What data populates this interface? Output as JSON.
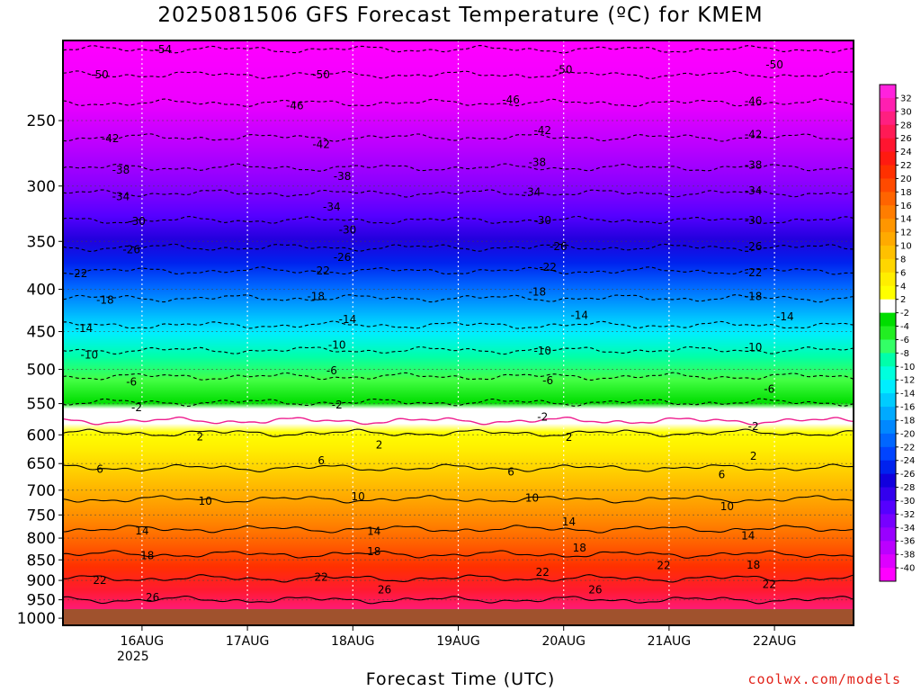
{
  "title": "2025081506 GFS Forecast Temperature (ºC) for KMEM",
  "xlabel": "Forecast Time (UTC)",
  "credit": "coolwx.com/models",
  "year_label": "2025",
  "chart_data": {
    "type": "heatmap",
    "title": "2025081506 GFS Forecast Temperature (ºC) for KMEM",
    "xlabel": "Forecast Time (UTC)",
    "ylabel": "",
    "x_ticks": [
      "16AUG",
      "17AUG",
      "18AUG",
      "19AUG",
      "20AUG",
      "21AUG",
      "22AUG"
    ],
    "x_range_days": [
      15.25,
      22.75
    ],
    "y_ticks": [
      250,
      300,
      350,
      400,
      450,
      500,
      550,
      600,
      650,
      700,
      750,
      800,
      850,
      900,
      950,
      1000
    ],
    "y_range_hpa": [
      200,
      1020
    ],
    "y_scale": "log-pressure",
    "colorbar_labels": [
      32,
      30,
      28,
      26,
      24,
      22,
      20,
      18,
      16,
      14,
      12,
      10,
      8,
      6,
      4,
      2,
      -2,
      -4,
      -6,
      -8,
      -10,
      -12,
      -14,
      -16,
      -18,
      -20,
      -22,
      -24,
      -26,
      -28,
      -30,
      -32,
      -34,
      -36,
      -38,
      -40
    ],
    "colorbar_colors": [
      "#ff22dd",
      "#ff1fb0",
      "#ff1f80",
      "#ff1a55",
      "#ff1530",
      "#ff1a10",
      "#ff3000",
      "#ff4a00",
      "#ff6400",
      "#ff7d00",
      "#ff9600",
      "#ffaa00",
      "#ffc000",
      "#ffd600",
      "#ffee00",
      "#ffff00",
      "#ffffff",
      "#00dd00",
      "#22ee22",
      "#33ff66",
      "#00ffaa",
      "#00ffdd",
      "#00eeff",
      "#00ccff",
      "#00aaff",
      "#0088ff",
      "#0066ff",
      "#0044ff",
      "#0022ee",
      "#1100dd",
      "#3300ee",
      "#5500ff",
      "#7700ff",
      "#9900ff",
      "#bb00ff",
      "#dd00ff",
      "#ff00ff"
    ],
    "isotherm_levels_hpa": [
      {
        "temp": -54,
        "p": 205
      },
      {
        "temp": -50,
        "p": 220
      },
      {
        "temp": -46,
        "p": 238
      },
      {
        "temp": -42,
        "p": 262
      },
      {
        "temp": -38,
        "p": 285
      },
      {
        "temp": -34,
        "p": 306
      },
      {
        "temp": -30,
        "p": 330
      },
      {
        "temp": -26,
        "p": 356
      },
      {
        "temp": -22,
        "p": 380
      },
      {
        "temp": -18,
        "p": 410
      },
      {
        "temp": -14,
        "p": 442
      },
      {
        "temp": -10,
        "p": 474
      },
      {
        "temp": -6,
        "p": 510
      },
      {
        "temp": -2,
        "p": 548
      },
      {
        "temp": 2,
        "p": 597
      },
      {
        "temp": 6,
        "p": 658
      },
      {
        "temp": 10,
        "p": 718
      },
      {
        "temp": 14,
        "p": 780
      },
      {
        "temp": 18,
        "p": 837
      },
      {
        "temp": 22,
        "p": 895
      },
      {
        "temp": 26,
        "p": 950
      }
    ],
    "contour_labels": [
      {
        "text": "-54",
        "day": 16.2,
        "p": 205
      },
      {
        "text": "-50",
        "day": 15.6,
        "p": 220
      },
      {
        "text": "-50",
        "day": 17.7,
        "p": 220
      },
      {
        "text": "-50",
        "day": 20.0,
        "p": 217
      },
      {
        "text": "-50",
        "day": 22.0,
        "p": 214
      },
      {
        "text": "-46",
        "day": 17.45,
        "p": 240
      },
      {
        "text": "-46",
        "day": 19.5,
        "p": 236
      },
      {
        "text": "-46",
        "day": 21.8,
        "p": 237
      },
      {
        "text": "-42",
        "day": 15.7,
        "p": 263
      },
      {
        "text": "-42",
        "day": 17.7,
        "p": 267
      },
      {
        "text": "-42",
        "day": 19.8,
        "p": 257
      },
      {
        "text": "-42",
        "day": 21.8,
        "p": 260
      },
      {
        "text": "-38",
        "day": 15.8,
        "p": 287
      },
      {
        "text": "-38",
        "day": 17.9,
        "p": 292
      },
      {
        "text": "-38",
        "day": 19.75,
        "p": 281
      },
      {
        "text": "-38",
        "day": 21.8,
        "p": 283
      },
      {
        "text": "-34",
        "day": 15.8,
        "p": 309
      },
      {
        "text": "-34",
        "day": 17.8,
        "p": 318
      },
      {
        "text": "-34",
        "day": 19.7,
        "p": 305
      },
      {
        "text": "-34",
        "day": 21.8,
        "p": 304
      },
      {
        "text": "-30",
        "day": 15.95,
        "p": 331
      },
      {
        "text": "-30",
        "day": 17.95,
        "p": 339
      },
      {
        "text": "-30",
        "day": 19.8,
        "p": 330
      },
      {
        "text": "-30",
        "day": 21.8,
        "p": 330
      },
      {
        "text": "-26",
        "day": 15.9,
        "p": 358
      },
      {
        "text": "-26",
        "day": 17.9,
        "p": 366
      },
      {
        "text": "-26",
        "day": 19.95,
        "p": 355
      },
      {
        "text": "-26",
        "day": 21.8,
        "p": 355
      },
      {
        "text": "-22",
        "day": 15.4,
        "p": 383
      },
      {
        "text": "-22",
        "day": 17.7,
        "p": 380
      },
      {
        "text": "-22",
        "day": 19.85,
        "p": 376
      },
      {
        "text": "-22",
        "day": 21.8,
        "p": 382
      },
      {
        "text": "-18",
        "day": 15.65,
        "p": 412
      },
      {
        "text": "-18",
        "day": 17.65,
        "p": 408
      },
      {
        "text": "-18",
        "day": 19.75,
        "p": 403
      },
      {
        "text": "-18",
        "day": 21.8,
        "p": 408
      },
      {
        "text": "-14",
        "day": 15.45,
        "p": 446
      },
      {
        "text": "-14",
        "day": 17.95,
        "p": 435
      },
      {
        "text": "-14",
        "day": 20.15,
        "p": 430
      },
      {
        "text": "-14",
        "day": 22.1,
        "p": 432
      },
      {
        "text": "-10",
        "day": 15.5,
        "p": 480
      },
      {
        "text": "-10",
        "day": 17.85,
        "p": 467
      },
      {
        "text": "-10",
        "day": 19.8,
        "p": 475
      },
      {
        "text": "-10",
        "day": 21.8,
        "p": 470
      },
      {
        "text": "-6",
        "day": 15.9,
        "p": 518
      },
      {
        "text": "-6",
        "day": 17.8,
        "p": 502
      },
      {
        "text": "-6",
        "day": 19.85,
        "p": 516
      },
      {
        "text": "-6",
        "day": 21.95,
        "p": 528
      },
      {
        "text": "-2",
        "day": 15.95,
        "p": 556
      },
      {
        "text": "-2",
        "day": 17.85,
        "p": 552
      },
      {
        "text": "-2",
        "day": 19.8,
        "p": 571
      },
      {
        "text": "-2",
        "day": 21.8,
        "p": 586
      },
      {
        "text": "2",
        "day": 16.55,
        "p": 603
      },
      {
        "text": "2",
        "day": 18.25,
        "p": 617
      },
      {
        "text": "2",
        "day": 20.05,
        "p": 604
      },
      {
        "text": "2",
        "day": 21.8,
        "p": 637
      },
      {
        "text": "6",
        "day": 15.6,
        "p": 660
      },
      {
        "text": "6",
        "day": 17.7,
        "p": 645
      },
      {
        "text": "6",
        "day": 19.5,
        "p": 665
      },
      {
        "text": "6",
        "day": 21.5,
        "p": 670
      },
      {
        "text": "10",
        "day": 16.6,
        "p": 722
      },
      {
        "text": "10",
        "day": 18.05,
        "p": 713
      },
      {
        "text": "10",
        "day": 19.7,
        "p": 715
      },
      {
        "text": "10",
        "day": 21.55,
        "p": 733
      },
      {
        "text": "14",
        "day": 16.0,
        "p": 784
      },
      {
        "text": "14",
        "day": 18.2,
        "p": 785
      },
      {
        "text": "14",
        "day": 20.05,
        "p": 765
      },
      {
        "text": "14",
        "day": 21.75,
        "p": 795
      },
      {
        "text": "18",
        "day": 16.05,
        "p": 840
      },
      {
        "text": "18",
        "day": 18.2,
        "p": 830
      },
      {
        "text": "18",
        "day": 20.15,
        "p": 822
      },
      {
        "text": "18",
        "day": 21.8,
        "p": 862
      },
      {
        "text": "22",
        "day": 15.6,
        "p": 900
      },
      {
        "text": "22",
        "day": 17.7,
        "p": 892
      },
      {
        "text": "22",
        "day": 19.8,
        "p": 880
      },
      {
        "text": "22",
        "day": 20.95,
        "p": 863
      },
      {
        "text": "22",
        "day": 21.95,
        "p": 910
      },
      {
        "text": "26",
        "day": 16.1,
        "p": 944
      },
      {
        "text": "26",
        "day": 18.3,
        "p": 924
      },
      {
        "text": "26",
        "day": 20.3,
        "p": 924
      }
    ],
    "legend": "colorbar-right",
    "grid": true
  }
}
